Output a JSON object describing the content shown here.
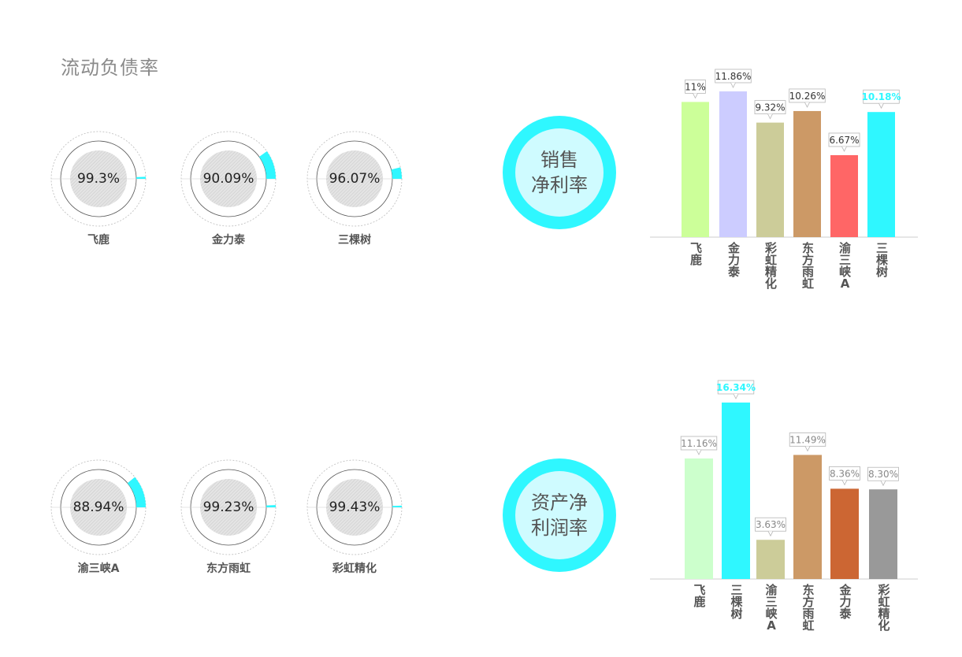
{
  "title": "流动负债率",
  "gauges": [
    {
      "name": "飞鹿",
      "value": 99.3,
      "label": "99.3%"
    },
    {
      "name": "金力泰",
      "value": 90.09,
      "label": "90.09%"
    },
    {
      "name": "三棵树",
      "value": 96.07,
      "label": "96.07%"
    },
    {
      "name": "渝三峡A",
      "value": 88.94,
      "label": "88.94%"
    },
    {
      "name": "东方雨虹",
      "value": 99.23,
      "label": "99.23%"
    },
    {
      "name": "彩虹精化",
      "value": 99.43,
      "label": "99.43%"
    }
  ],
  "colors": {
    "accent": "#2ff7ff",
    "accent_light": "#cffbff",
    "track": "#d0d0d0"
  },
  "badges": [
    {
      "lines": [
        "销售",
        "净利率"
      ]
    },
    {
      "lines": [
        "资产净",
        "利润率"
      ]
    }
  ],
  "chart_data": [
    {
      "type": "bar",
      "categories": [
        "飞鹿",
        "金力泰",
        "彩虹精化",
        "东方雨虹",
        "渝三峡A",
        "三棵树"
      ],
      "values": [
        11,
        11.86,
        9.32,
        10.26,
        6.67,
        10.18
      ],
      "data_labels": [
        "11%",
        "11.86%",
        "9.32%",
        "10.26%",
        "6.67%",
        "10.18%"
      ],
      "colors": [
        "#ccff99",
        "#ccccff",
        "#cccc99",
        "#cc9966",
        "#ff6666",
        "#2ff7ff"
      ],
      "highlight_index": 5,
      "ylim": [
        0,
        11.86
      ]
    },
    {
      "type": "bar",
      "categories": [
        "飞鹿",
        "三棵树",
        "渝三峡A",
        "东方雨虹",
        "金力泰",
        "彩虹精化"
      ],
      "values": [
        11.16,
        16.34,
        3.63,
        11.49,
        8.36,
        8.3
      ],
      "data_labels": [
        "11.16%",
        "16.34%",
        "3.63%",
        "11.49%",
        "8.36%",
        "8.30%"
      ],
      "colors": [
        "#ccffcc",
        "#2ff7ff",
        "#cccc99",
        "#cc9966",
        "#cc6633",
        "#999999"
      ],
      "highlight_index": 1,
      "ylim": [
        0,
        16.34
      ]
    }
  ]
}
